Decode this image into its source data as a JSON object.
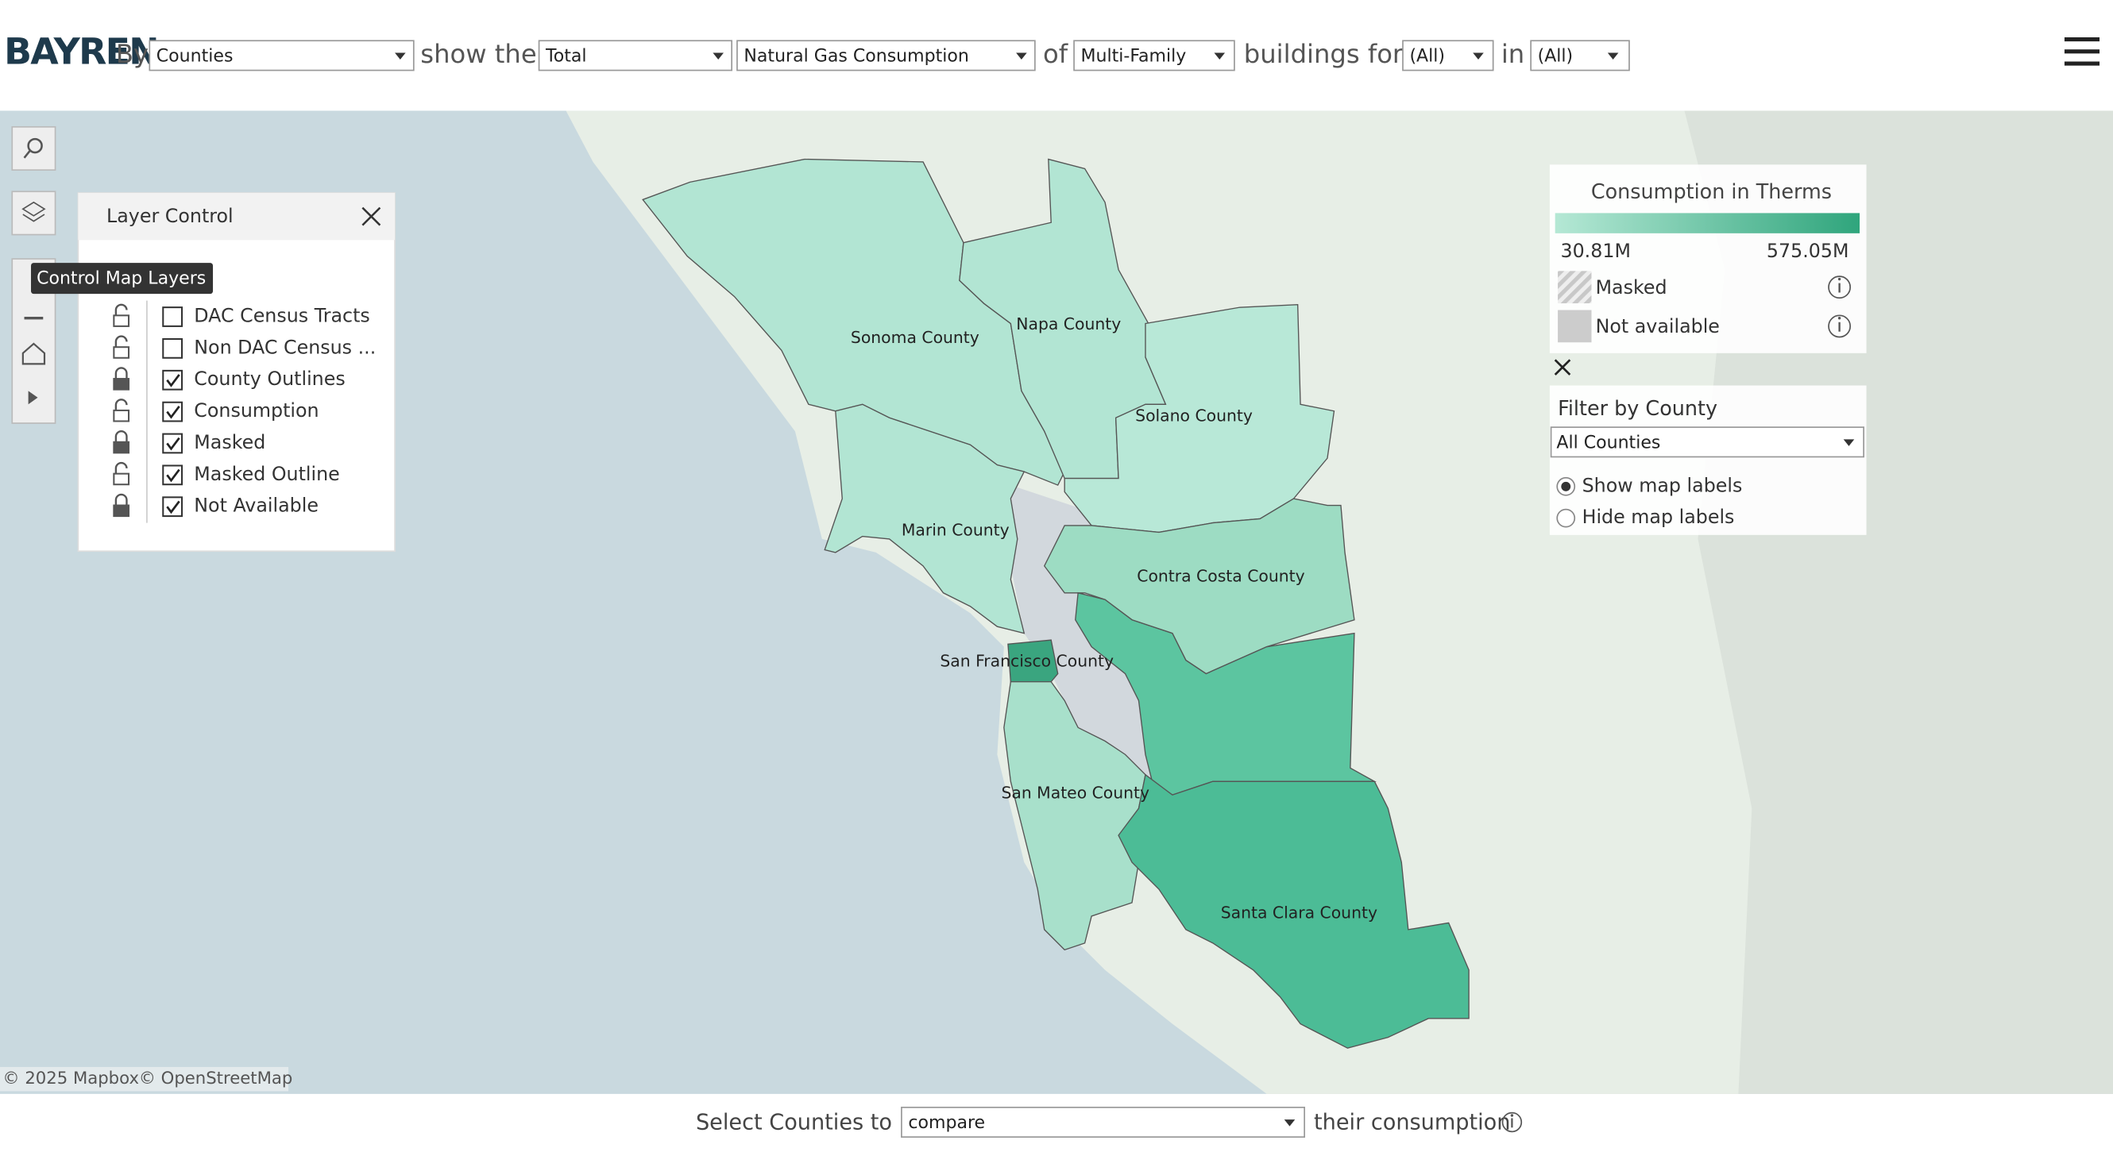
{
  "header": {
    "logo": "BAYREN",
    "by": "By",
    "group_select": "Counties",
    "show_the": "show the",
    "measure_select": "Total",
    "metric_select": "Natural Gas Consumption",
    "of": "of",
    "building_select": "Multi-Family",
    "buildings_for": "buildings for",
    "year_select": "(All)",
    "in": "in",
    "region_select": "(All)"
  },
  "toolbar": {
    "tooltip": "Control Map Layers"
  },
  "layer_control": {
    "title": "Layer Control",
    "layers": [
      {
        "name": "DAC Census Tracts",
        "checked": false,
        "locked": false
      },
      {
        "name": "Non DAC Census ...",
        "checked": false,
        "locked": false
      },
      {
        "name": "County Outlines",
        "checked": true,
        "locked": true
      },
      {
        "name": "Consumption",
        "checked": true,
        "locked": false
      },
      {
        "name": "Masked",
        "checked": true,
        "locked": true
      },
      {
        "name": "Masked Outline",
        "checked": true,
        "locked": false
      },
      {
        "name": "Not Available",
        "checked": true,
        "locked": true
      }
    ]
  },
  "map": {
    "counties": [
      {
        "label": "Sonoma County"
      },
      {
        "label": "Napa County"
      },
      {
        "label": "Solano County"
      },
      {
        "label": "Marin County"
      },
      {
        "label": "Contra Costa County"
      },
      {
        "label": "San Francisco County"
      },
      {
        "label": "San Mateo County"
      },
      {
        "label": "Santa Clara County"
      }
    ],
    "attribution": [
      "© 2025 Mapbox",
      "© OpenStreetMap"
    ]
  },
  "legend": {
    "title": "Consumption in Therms",
    "min": "30.81M",
    "max": "575.05M",
    "masked": "Masked",
    "not_available": "Not available"
  },
  "filter": {
    "title": "Filter by County",
    "select": "All Counties",
    "options": [
      {
        "label": "Show map labels",
        "selected": true
      },
      {
        "label": "Hide map labels",
        "selected": false
      }
    ]
  },
  "footer": {
    "select_label": "Select Counties to",
    "select": "compare",
    "suffix": "their consumption"
  }
}
